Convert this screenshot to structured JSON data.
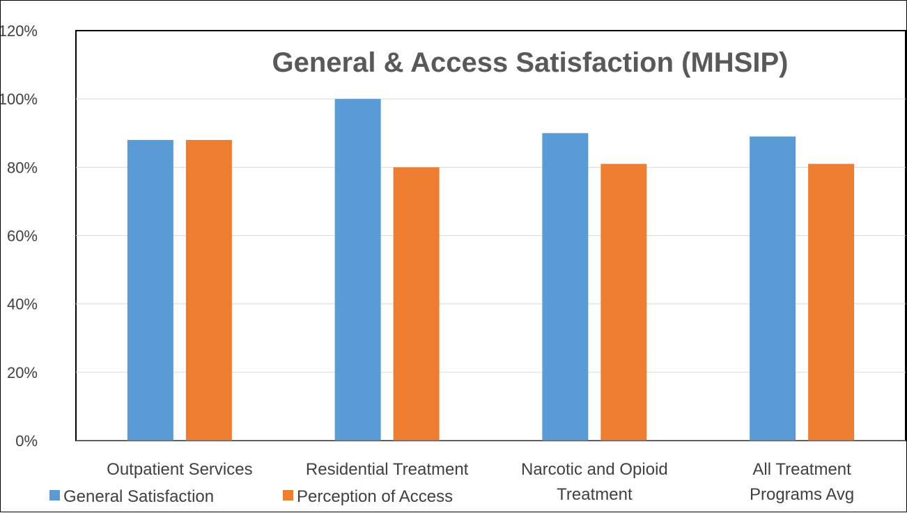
{
  "chart_data": {
    "type": "bar",
    "title": "General & Access Satisfaction (MHSIP)",
    "categories": [
      [
        "Outpatient Services"
      ],
      [
        "Residential Treatment"
      ],
      [
        "Narcotic and Opioid",
        "Treatment"
      ],
      [
        "All Treatment",
        "Programs Avg"
      ]
    ],
    "series": [
      {
        "name": "General Satisfaction",
        "color": "#5B9BD5",
        "values": [
          88,
          100,
          90,
          89
        ]
      },
      {
        "name": "Perception of Access",
        "color": "#ED7D31",
        "values": [
          88,
          80,
          81,
          81
        ]
      }
    ],
    "ylim": [
      0,
      120
    ],
    "yticks": [
      "0%",
      "20%",
      "40%",
      "60%",
      "80%",
      "100%",
      "120%"
    ],
    "grid": true,
    "legend_position": "bottom-left"
  }
}
